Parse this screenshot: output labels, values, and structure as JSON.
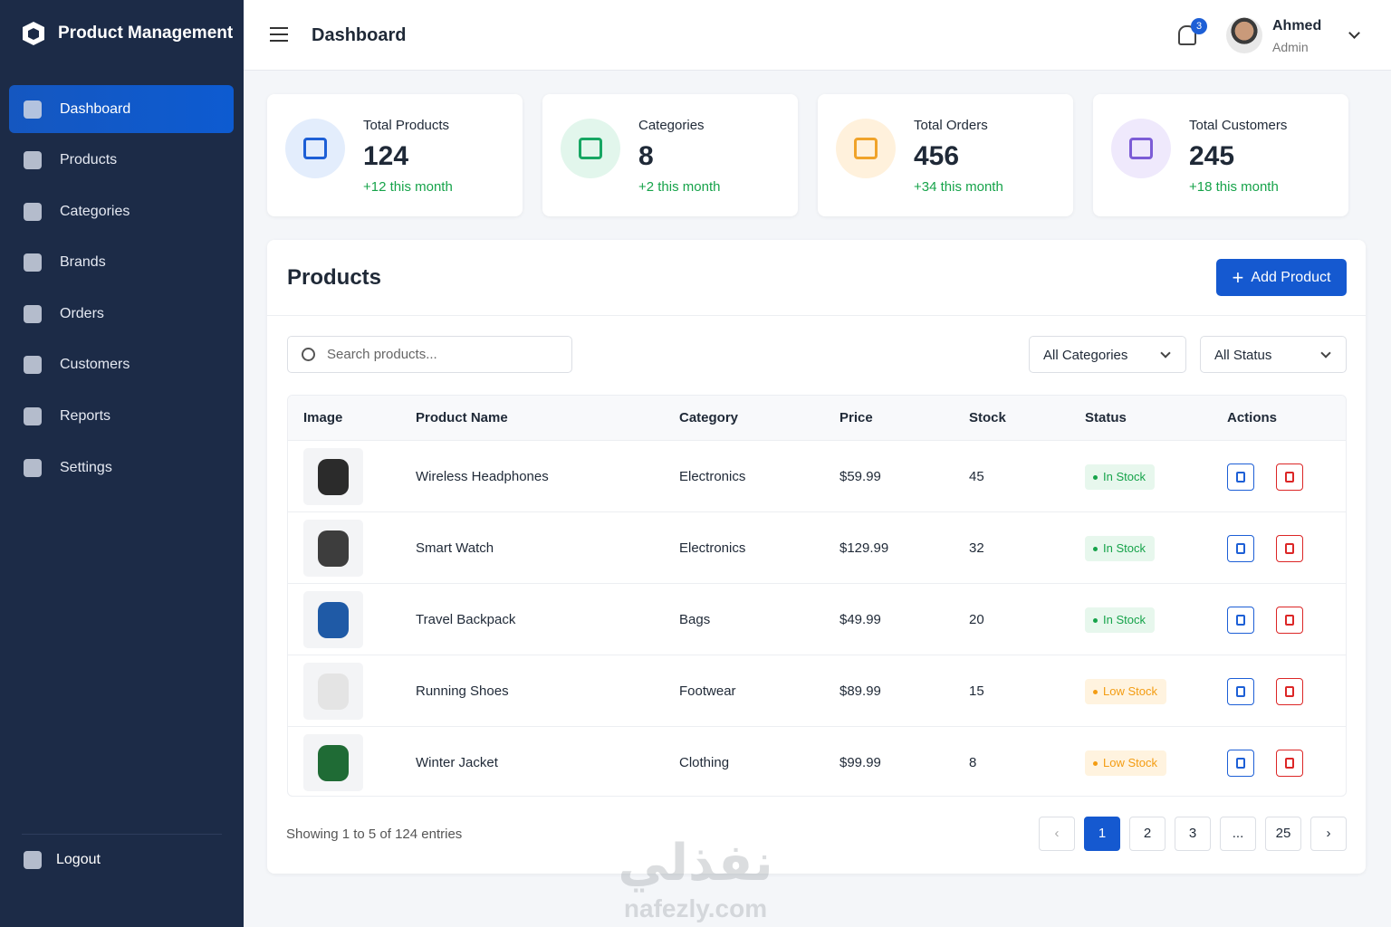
{
  "sidebar": {
    "brand": "Product Management",
    "nav": [
      "Dashboard",
      "Products",
      "Categories",
      "Brands",
      "Orders",
      "Customers",
      "Reports",
      "Settings"
    ],
    "logout": "Logout"
  },
  "header": {
    "title": "Dashboard",
    "notifications": 3,
    "user": {
      "name": "Ahmed",
      "role": "Admin"
    }
  },
  "stats": [
    {
      "label": "Total Products",
      "value": 124,
      "change": "+12 this month"
    },
    {
      "label": "Categories",
      "value": 8,
      "change": "+2 this month"
    },
    {
      "label": "Total Orders",
      "value": 456,
      "change": "+34 this month"
    },
    {
      "label": "Total Customers",
      "value": 245,
      "change": "+18 this month"
    }
  ],
  "products": {
    "title": "Products",
    "add_button": "Add Product",
    "search_placeholder": "Search products...",
    "filters": [
      "All Categories",
      "All Status"
    ],
    "table": {
      "headers": [
        "Image",
        "Product Name",
        "Category",
        "Price",
        "Stock",
        "Status",
        "Actions"
      ],
      "rows": [
        {
          "name": "Wireless Headphones",
          "category": "Electronics",
          "price": "$59.99",
          "stock": 45,
          "status": "In Stock"
        },
        {
          "name": "Smart Watch",
          "category": "Electronics",
          "price": "$129.99",
          "stock": 32,
          "status": "In Stock"
        },
        {
          "name": "Travel Backpack",
          "category": "Bags",
          "price": "$49.99",
          "stock": 20,
          "status": "In Stock"
        },
        {
          "name": "Running Shoes",
          "category": "Footwear",
          "price": "$89.99",
          "stock": 15,
          "status": "Low Stock"
        },
        {
          "name": "Winter Jacket",
          "category": "Clothing",
          "price": "$99.99",
          "stock": 8,
          "status": "Low Stock"
        }
      ]
    },
    "footer": "Showing 1 to 5 of 124 entries",
    "pages": [
      "1",
      "2",
      "3",
      "...",
      "25"
    ]
  },
  "watermark": {
    "arabic": "نفذلي",
    "latin": "nafezly.com"
  }
}
